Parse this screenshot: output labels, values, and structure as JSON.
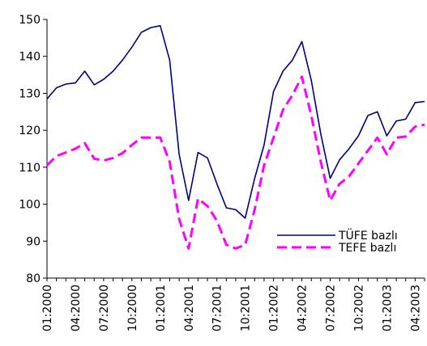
{
  "chart_data": {
    "type": "line",
    "title": "",
    "xlabel": "",
    "ylabel": "",
    "ylim": [
      80,
      150
    ],
    "yticks": [
      80,
      90,
      100,
      110,
      120,
      130,
      140,
      150
    ],
    "grid": false,
    "legend_position": "lower-right",
    "x": [
      "01:2000",
      "02:2000",
      "03:2000",
      "04:2000",
      "05:2000",
      "06:2000",
      "07:2000",
      "08:2000",
      "09:2000",
      "10:2000",
      "11:2000",
      "12:2000",
      "01:2001",
      "02:2001",
      "03:2001",
      "04:2001",
      "05:2001",
      "06:2001",
      "07:2001",
      "08:2001",
      "09:2001",
      "10:2001",
      "11:2001",
      "12:2001",
      "01:2002",
      "02:2002",
      "03:2002",
      "04:2002",
      "05:2002",
      "06:2002",
      "07:2002",
      "08:2002",
      "09:2002",
      "10:2002",
      "11:2002",
      "12:2002",
      "01:2003",
      "02:2003",
      "03:2003",
      "04:2003",
      "05:2003"
    ],
    "xtick_labels": [
      "01:2000",
      "04:2000",
      "07:2000",
      "10:2000",
      "01:2001",
      "04:2001",
      "07:2001",
      "10:2001",
      "01:2002",
      "04:2002",
      "07:2002",
      "10:2002",
      "01:2003",
      "04:2003"
    ],
    "series": [
      {
        "name": "TÜFE bazlı",
        "color": "#000080",
        "style": "solid",
        "values": [
          128.5,
          131.5,
          132.5,
          132.8,
          136.0,
          132.3,
          133.8,
          136.0,
          139.0,
          142.5,
          146.5,
          147.8,
          148.3,
          139.0,
          113.5,
          101.0,
          114.0,
          112.5,
          105.5,
          99.0,
          98.5,
          96.2,
          107.0,
          116.0,
          130.5,
          136.0,
          139.0,
          144.0,
          133.5,
          119.0,
          107.0,
          112.0,
          115.0,
          118.5,
          124.0,
          125.0,
          118.5,
          122.5,
          123.0,
          127.5,
          127.8
        ]
      },
      {
        "name": "TEFE bazlı",
        "color": "#FF00FF",
        "style": "dashed",
        "values": [
          110.5,
          113.0,
          114.0,
          115.0,
          116.5,
          112.3,
          111.8,
          112.5,
          113.8,
          116.0,
          118.0,
          118.0,
          118.0,
          111.5,
          96.0,
          88.0,
          101.5,
          99.5,
          95.5,
          89.0,
          88.0,
          89.0,
          98.5,
          110.5,
          118.0,
          125.5,
          129.5,
          134.5,
          124.0,
          111.5,
          101.0,
          105.5,
          107.5,
          111.0,
          114.5,
          118.0,
          113.5,
          118.0,
          118.3,
          121.0,
          121.5
        ]
      }
    ]
  }
}
